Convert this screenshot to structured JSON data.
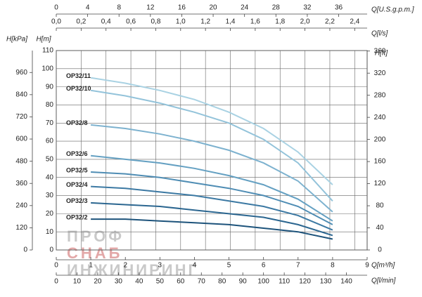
{
  "chart_data": {
    "type": "line",
    "x": [
      1,
      2,
      3,
      4,
      5,
      6,
      7,
      8
    ],
    "xlabel": "Q[m³/h]",
    "xlim": [
      0,
      9
    ],
    "xticks": [
      0,
      1,
      2,
      3,
      4,
      5,
      6,
      7,
      8,
      9
    ],
    "x_alt_axes": [
      {
        "label": "Q[l/min]",
        "lim": [
          0,
          150
        ],
        "ticks": [
          0,
          10,
          20,
          30,
          40,
          50,
          60,
          70,
          80,
          90,
          100,
          110,
          120,
          130,
          140
        ]
      },
      {
        "label": "Q[l/s]",
        "lim": [
          0,
          2.5
        ],
        "ticks": [
          {
            "value": 0,
            "label": "0,0"
          },
          {
            "value": 0.2,
            "label": "0,2"
          },
          {
            "value": 0.4,
            "label": "0,4"
          },
          {
            "value": 0.6,
            "label": "0,6"
          },
          {
            "value": 0.8,
            "label": "0,8"
          },
          {
            "value": 1.0,
            "label": "1,0"
          },
          {
            "value": 1.2,
            "label": "1,2"
          },
          {
            "value": 1.4,
            "label": "1,4"
          },
          {
            "value": 1.6,
            "label": "1,6"
          },
          {
            "value": 1.8,
            "label": "1,8"
          },
          {
            "value": 2.0,
            "label": "2,0"
          },
          {
            "value": 2.2,
            "label": "2,2"
          },
          {
            "value": 2.4,
            "label": "2,4"
          }
        ]
      },
      {
        "label": "Q[U.S.g.p.m.]",
        "lim": [
          0,
          39.63
        ],
        "ticks": [
          0,
          4,
          8,
          12,
          16,
          20,
          24,
          28,
          32,
          36
        ]
      }
    ],
    "ylabel": "H[m]",
    "ylim": [
      0,
      110
    ],
    "yticks": [
      0,
      10,
      20,
      30,
      40,
      50,
      60,
      70,
      80,
      90,
      100,
      110
    ],
    "y2label": "H[ft]",
    "y2lim": [
      0,
      360.9
    ],
    "y2ticks": [
      0,
      40,
      80,
      120,
      160,
      200,
      240,
      280,
      320,
      360
    ],
    "y_alt_axes": [
      {
        "label": "H[kPa]",
        "lim": [
          0,
          1078.7
        ],
        "ticks": [
          0,
          120,
          240,
          360,
          480,
          600,
          720,
          840,
          960
        ]
      }
    ],
    "grid": true,
    "series": [
      {
        "name": "OP32/11",
        "color": "#a9d2e3",
        "values": [
          95,
          92,
          88,
          83,
          76,
          67,
          54,
          36
        ]
      },
      {
        "name": "OP32/10",
        "color": "#93c3da",
        "values": [
          88,
          85,
          81,
          76,
          70,
          61,
          48,
          27
        ]
      },
      {
        "name": "OP32/8",
        "color": "#7db2cf",
        "values": [
          69,
          67,
          64,
          60,
          55,
          48,
          38,
          21
        ]
      },
      {
        "name": "OP32/6",
        "color": "#64a0c2",
        "values": [
          52,
          50,
          48,
          45,
          41,
          36,
          28,
          16
        ]
      },
      {
        "name": "OP32/5",
        "color": "#4f8db4",
        "values": [
          43,
          42,
          40,
          37,
          34,
          30,
          24,
          14
        ]
      },
      {
        "name": "OP32/4",
        "color": "#3c79a3",
        "values": [
          35,
          34,
          32,
          30,
          27,
          24,
          19,
          11
        ]
      },
      {
        "name": "OP32/3",
        "color": "#2b6690",
        "values": [
          26,
          25,
          24,
          22,
          20,
          18,
          14,
          8
        ]
      },
      {
        "name": "OP32/2",
        "color": "#1d537b",
        "values": [
          17,
          17,
          16,
          15,
          14,
          12,
          10,
          6
        ]
      }
    ]
  },
  "watermark": [
    "ПРОФ",
    "СНАБ",
    "ИНЖИНИРИНГ"
  ]
}
